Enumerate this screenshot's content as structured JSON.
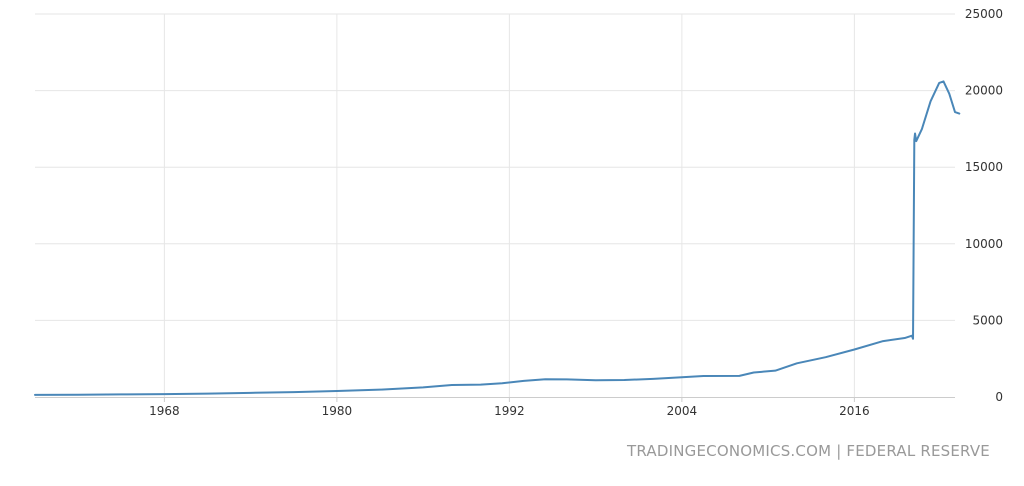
{
  "chart_data": {
    "type": "line",
    "title": "",
    "xlabel": "",
    "ylabel": "",
    "xlim": [
      1959.0,
      2023.0
    ],
    "ylim": [
      0,
      25000
    ],
    "x_ticks": [
      1968,
      1980,
      1992,
      2004,
      2016
    ],
    "y_ticks": [
      0,
      5000,
      10000,
      15000,
      20000,
      25000
    ],
    "grid": true,
    "colors": {
      "line": "#4a87b8",
      "grid": "#e6e6e6",
      "axis": "#cccccc"
    },
    "series": [
      {
        "x": [
          1959.0,
          1962,
          1965,
          1968,
          1971,
          1974,
          1977,
          1980,
          1983,
          1986,
          1988,
          1990,
          1991.5,
          1993,
          1994.5,
          1996,
          1998,
          2000,
          2002,
          2004,
          2005.5,
          2008,
          2009,
          2010.5,
          2012,
          2014,
          2016,
          2018,
          2019.5,
          2020.0,
          2020.08,
          2020.17,
          2020.22,
          2020.3,
          2020.7,
          2021.3,
          2021.9,
          2022.2,
          2022.6,
          2023.0,
          2023.3
        ],
        "y": [
          140,
          150,
          170,
          190,
          220,
          270,
          320,
          390,
          480,
          630,
          780,
          810,
          900,
          1050,
          1160,
          1150,
          1090,
          1110,
          1180,
          1290,
          1370,
          1380,
          1600,
          1720,
          2200,
          2600,
          3100,
          3650,
          3850,
          4000,
          3800,
          16800,
          17200,
          16700,
          17500,
          19300,
          20500,
          20600,
          19800,
          18600,
          18500
        ]
      }
    ]
  },
  "source_text": "TRADINGECONOMICS.COM | FEDERAL RESERVE"
}
